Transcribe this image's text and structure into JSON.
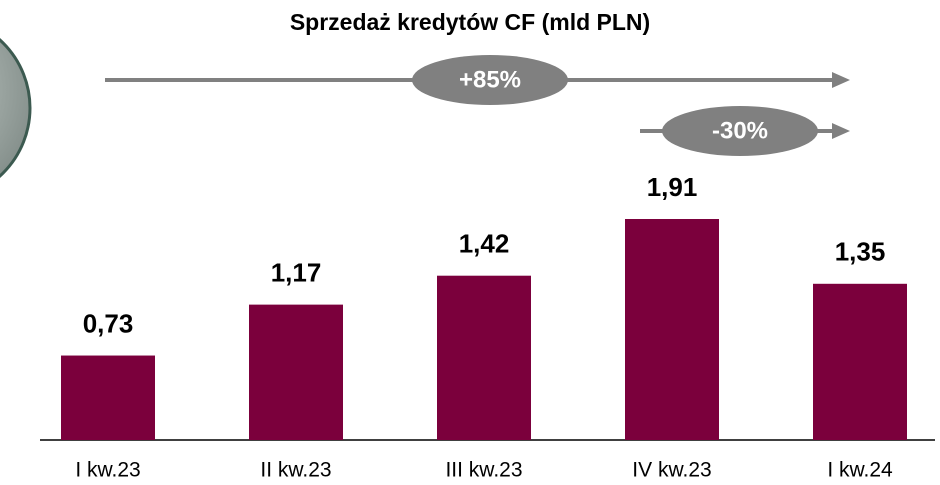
{
  "chart_data": {
    "type": "bar",
    "title": "Sprzedaż kredytów CF (mld PLN)",
    "categories": [
      "I kw.23",
      "II kw.23",
      "III kw.23",
      "IV kw.23",
      "I kw.24"
    ],
    "values": [
      0.73,
      1.17,
      1.42,
      1.91,
      1.35
    ],
    "value_labels": [
      "0,73",
      "1,17",
      "1,42",
      "1,91",
      "1,35"
    ],
    "color": "#7b003c",
    "annotations": [
      "+85%",
      "-30%"
    ]
  }
}
